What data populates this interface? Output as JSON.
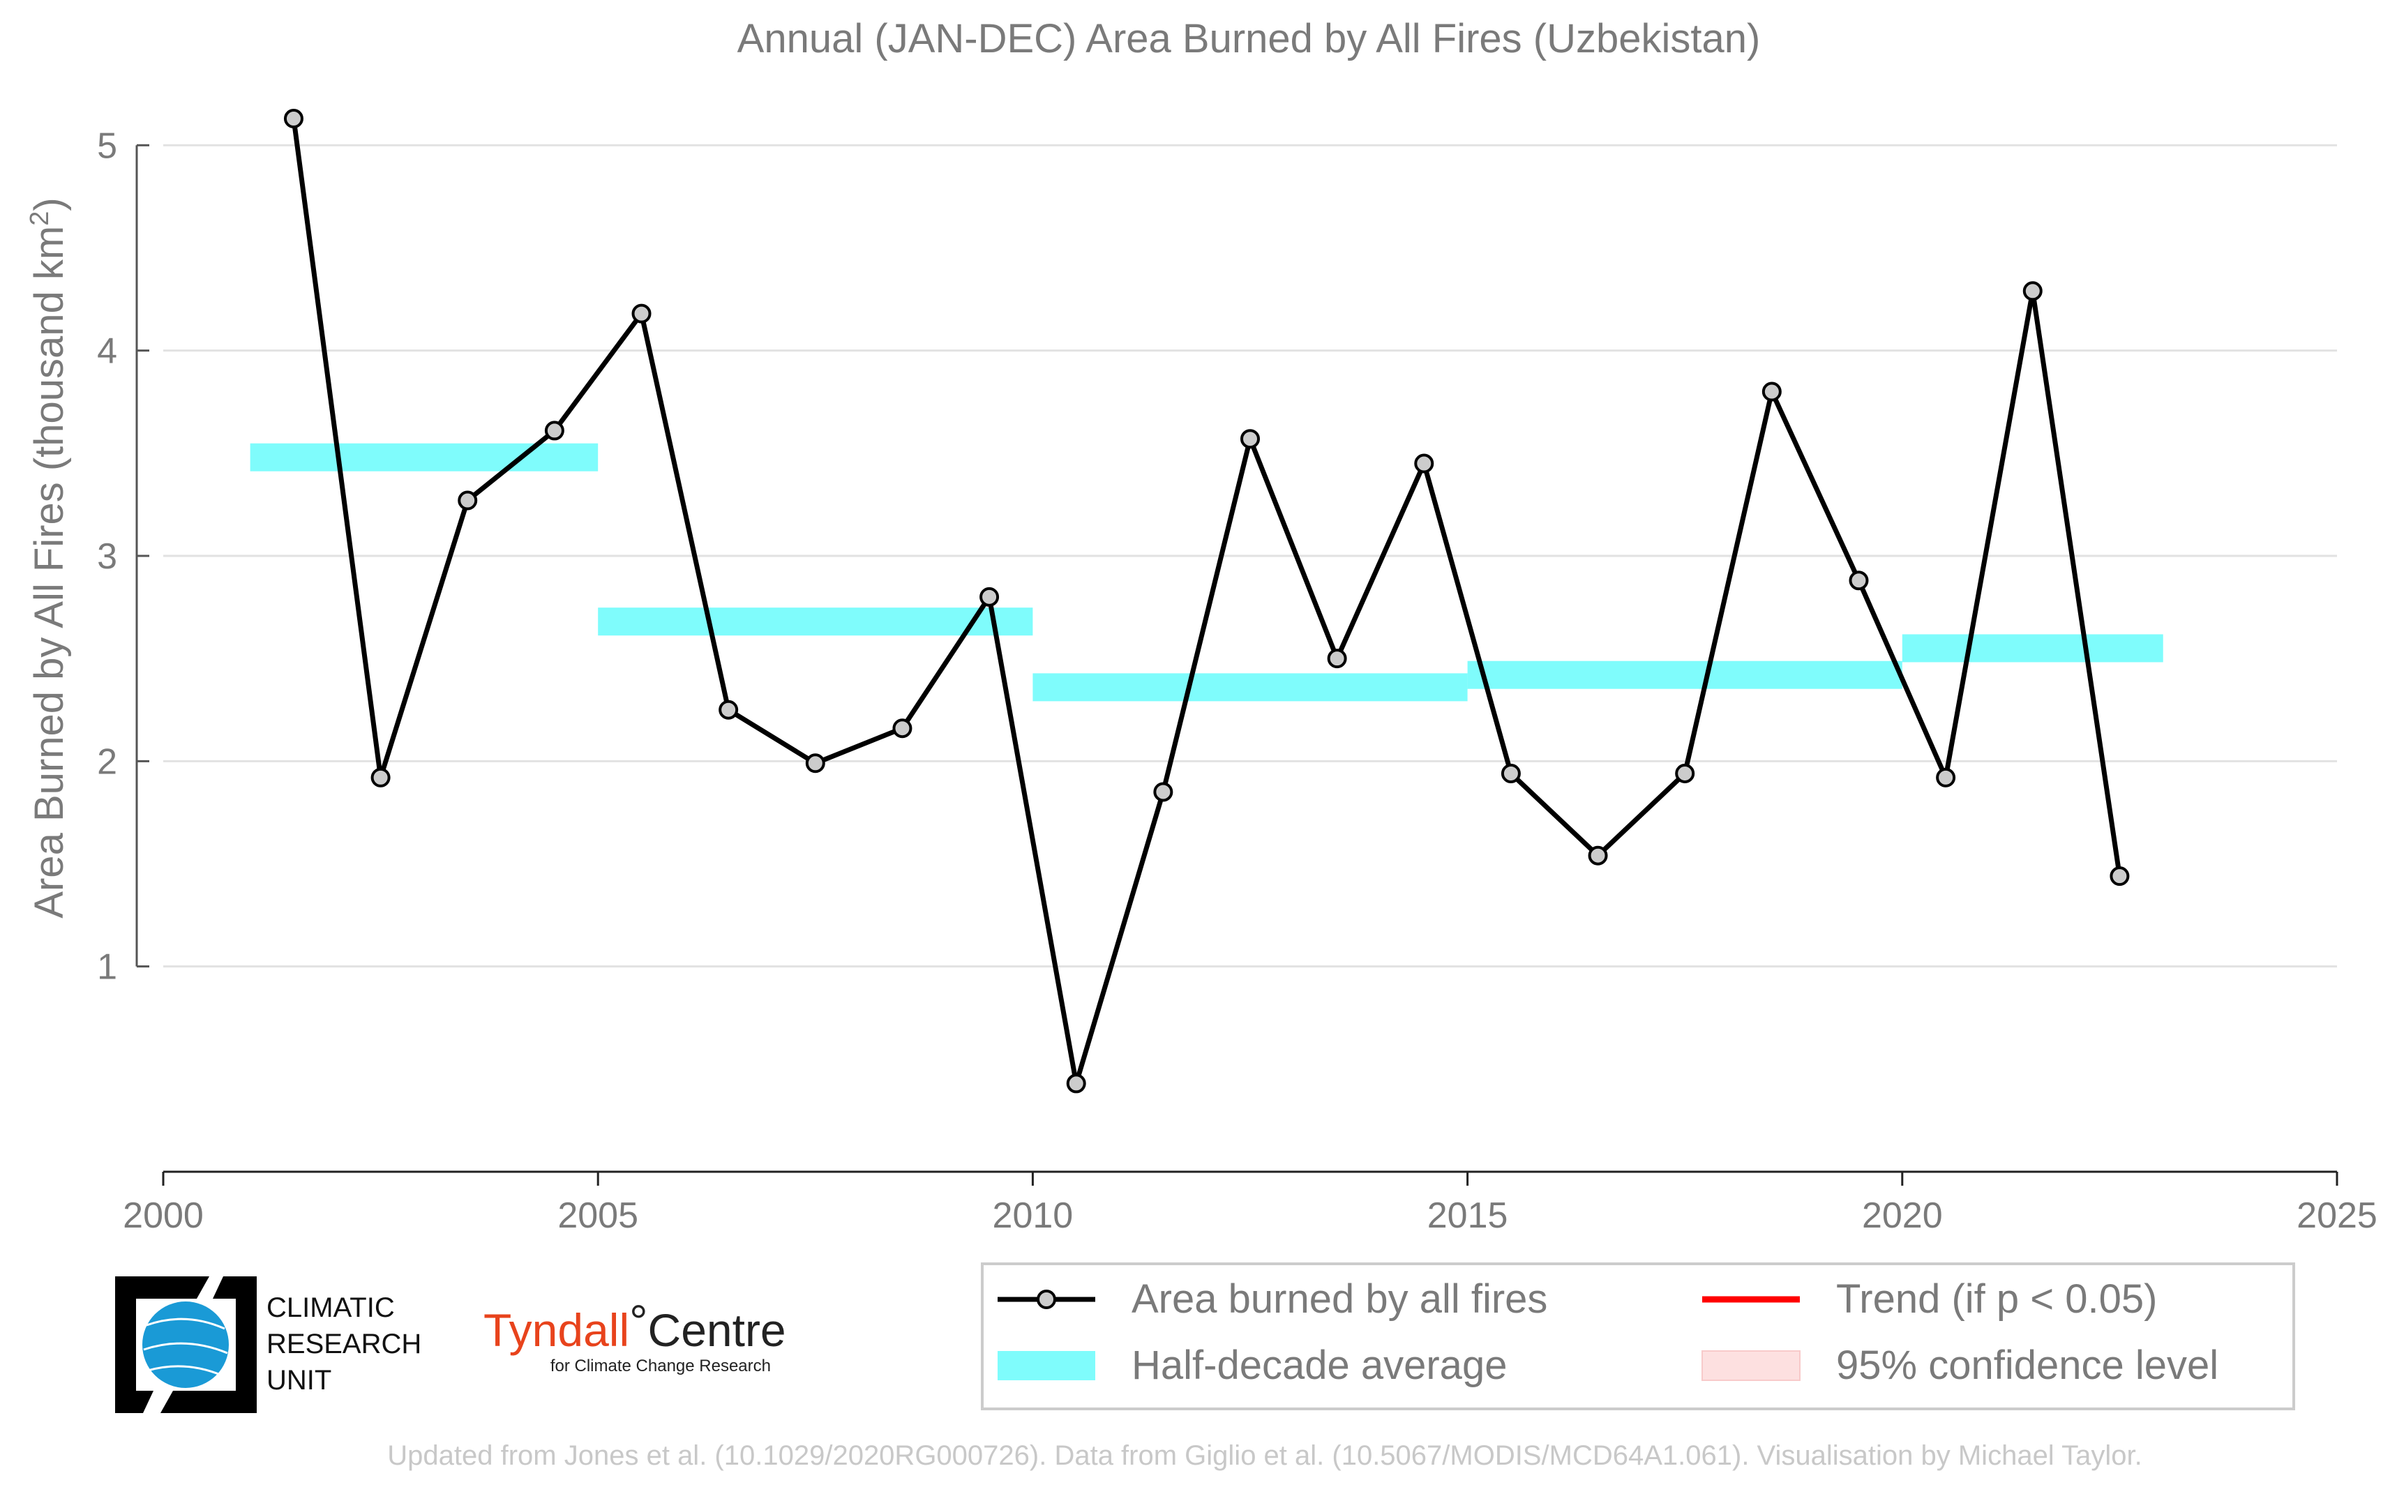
{
  "chart_data": {
    "type": "line",
    "title": "Annual (JAN-DEC) Area Burned by All Fires (Uzbekistan)",
    "ylabel_main": "Area Burned by All Fires (thousand km",
    "ylabel_sup": "2",
    "ylabel_end": ")",
    "xlabel": "",
    "xlim": [
      2000,
      2025
    ],
    "ylim": [
      0.0,
      5.3
    ],
    "x_ticks": [
      2000,
      2005,
      2010,
      2015,
      2020,
      2025
    ],
    "y_ticks": [
      1,
      2,
      3,
      4,
      5
    ],
    "grid": "horizontal",
    "series": [
      {
        "name": "Area burned by all fires",
        "color": "#000000",
        "marker_color": "#cccccc",
        "x": [
          2001.5,
          2002.5,
          2003.5,
          2004.5,
          2005.5,
          2006.5,
          2007.5,
          2008.5,
          2009.5,
          2010.5,
          2011.5,
          2012.5,
          2013.5,
          2014.5,
          2015.5,
          2016.5,
          2017.5,
          2018.5,
          2019.5,
          2020.5,
          2021.5,
          2022.5
        ],
        "y": [
          5.13,
          1.92,
          3.27,
          3.61,
          4.18,
          2.25,
          1.99,
          2.16,
          2.8,
          0.43,
          1.85,
          3.57,
          2.5,
          3.45,
          1.94,
          1.54,
          1.94,
          3.8,
          2.88,
          1.92,
          4.29,
          1.44
        ]
      }
    ],
    "half_decade_averages": {
      "name": "Half-decade average",
      "color": "#7ffcfc",
      "segments": [
        {
          "x_start": 2001,
          "x_end": 2005,
          "value": 3.48
        },
        {
          "x_start": 2005,
          "x_end": 2010,
          "value": 2.68
        },
        {
          "x_start": 2010,
          "x_end": 2015,
          "value": 2.36
        },
        {
          "x_start": 2015,
          "x_end": 2020,
          "value": 2.42
        },
        {
          "x_start": 2020,
          "x_end": 2023,
          "value": 2.55
        }
      ]
    },
    "legend": {
      "placement": "bottom-right",
      "entries": [
        {
          "label": "Area burned by all fires",
          "kind": "line-marker",
          "color": "#000000"
        },
        {
          "label": "Trend (if p < 0.05)",
          "kind": "line",
          "color": "#ff0000"
        },
        {
          "label": "Half-decade average",
          "kind": "band",
          "color": "#7ffcfc"
        },
        {
          "label": "95% confidence level",
          "kind": "band",
          "color": "#fde0e0"
        }
      ]
    }
  },
  "logos": {
    "cru": {
      "line1": "CLIMATIC",
      "line2": "RESEARCH",
      "line3": "UNIT",
      "color": "#1a9ad6"
    },
    "tyndall": {
      "main": "Tyndall",
      "degree": "°",
      "centre": "Centre",
      "sub": "for Climate Change Research",
      "color": "#e8431c"
    }
  },
  "footer": "Updated from Jones et al. (10.1029/2020RG000726). Data from Giglio et al. (10.5067/MODIS/MCD64A1.061). Visualisation by Michael Taylor."
}
